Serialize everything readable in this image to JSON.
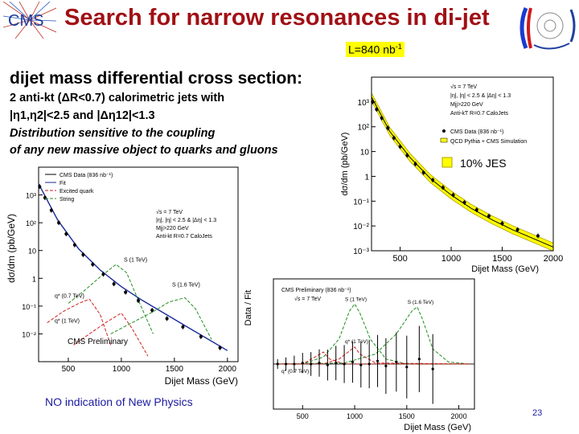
{
  "header": {
    "title": "Search for narrow resonances in di-jet",
    "logo_left_text": "CMS",
    "lumi_prefix": "L=840 nb",
    "lumi_exp": "-1"
  },
  "body": {
    "heading": "dijet mass differential cross section:",
    "line1": "2 anti-kt (ΔR<0.7) calorimetric jets with",
    "line2": "|η1,η2|<2.5 and |Δη12|<1.3",
    "line3": "Distribution sensitive to the coupling",
    "line4": "of any new massive object to quarks and gluons",
    "conclusion": "NO indication of New Physics",
    "page_number": "23"
  },
  "colors": {
    "title": "#a01015",
    "band": "#ffff00",
    "blue_text": "#1a1aa0"
  },
  "chart_data": [
    {
      "type": "line",
      "title": "",
      "xlabel": "Dijet Mass (GeV)",
      "ylabel": "dσ/dm (pb/GeV)",
      "xlim": [
        220,
        2000
      ],
      "ylim_log10": [
        -3,
        4
      ],
      "xticks": [
        "500",
        "1000",
        "1500",
        "2000"
      ],
      "yticks": [
        "10⁻³",
        "10⁻²",
        "10⁻¹",
        "1",
        "10",
        "10²",
        "10³"
      ],
      "annotations": [
        "√s = 7 TeV",
        "|η|, |η| < 2.5 & |Δη| < 1.3",
        "Mjj>220 GeV",
        "Anti-kT R=0.7 CaloJets"
      ],
      "legend": [
        "CMS Data (836 nb⁻¹)",
        "QCD Pythia + CMS Simulation"
      ],
      "band_label": "10% JES",
      "series": [
        {
          "name": "CMS Data",
          "x": [
            230,
            270,
            320,
            380,
            440,
            500,
            570,
            650,
            730,
            820,
            920,
            1020,
            1130,
            1250,
            1370,
            1500,
            1650,
            1850
          ],
          "log10y": [
            3.0,
            2.7,
            2.35,
            1.95,
            1.55,
            1.2,
            0.85,
            0.5,
            0.15,
            -0.15,
            -0.45,
            -0.75,
            -1.05,
            -1.35,
            -1.6,
            -1.9,
            -2.15,
            -2.4
          ]
        },
        {
          "name": "QCD Pythia",
          "x": [
            220,
            400,
            600,
            800,
            1000,
            1200,
            1400,
            1600,
            1800,
            2000
          ],
          "log10y": [
            3.2,
            1.8,
            0.75,
            -0.1,
            -0.75,
            -1.3,
            -1.75,
            -2.15,
            -2.5,
            -2.85
          ]
        }
      ]
    },
    {
      "type": "line",
      "title": "CMS Preliminary",
      "xlabel": "Dijet Mass (GeV)",
      "ylabel": "dσ/dm (pb/GeV)",
      "xlim": [
        220,
        2100
      ],
      "ylim_log10": [
        -3,
        4
      ],
      "xticks": [
        "500",
        "1000",
        "1500",
        "2000"
      ],
      "yticks": [
        "10⁻²",
        "10⁻¹",
        "1",
        "10",
        "10²",
        "10³"
      ],
      "legend": [
        "CMS Data (836 nb⁻¹)",
        "Fit",
        "Excited quark",
        "String"
      ],
      "annotations": [
        "√s = 7 TeV",
        "|η|, |η| < 2.5 & |Δη| < 1.3",
        "Mjj>220 GeV",
        "Anti-kt R=0.7 CaloJets"
      ],
      "signal_labels": [
        "q* (0.7 TeV)",
        "q* (1 TeV)",
        "S (1 TeV)",
        "S (1.6 TeV)"
      ],
      "series": [
        {
          "name": "CMS Data",
          "x": [
            230,
            280,
            340,
            410,
            480,
            560,
            640,
            730,
            830,
            930,
            1040,
            1160,
            1290,
            1430,
            1580,
            1750,
            1930
          ],
          "log10y": [
            3.3,
            2.9,
            2.45,
            2.0,
            1.6,
            1.2,
            0.85,
            0.5,
            0.15,
            -0.2,
            -0.5,
            -0.8,
            -1.15,
            -1.45,
            -1.75,
            -2.1,
            -2.5
          ]
        },
        {
          "name": "Fit",
          "x": [
            220,
            400,
            600,
            800,
            1000,
            1200,
            1400,
            1600,
            1800,
            2000
          ],
          "log10y": [
            3.4,
            2.1,
            1.05,
            0.3,
            -0.3,
            -0.8,
            -1.25,
            -1.7,
            -2.15,
            -2.6
          ]
        },
        {
          "name": "q* (0.7 TeV)",
          "x": [
            300,
            450,
            600,
            700,
            800,
            900
          ],
          "log10y": [
            -1.6,
            -1.2,
            -0.9,
            -0.75,
            -1.3,
            -2.4
          ]
        },
        {
          "name": "q* (1 TeV)",
          "x": [
            550,
            700,
            850,
            1000,
            1100,
            1250
          ],
          "log10y": [
            -2.4,
            -2.0,
            -1.6,
            -1.25,
            -1.8,
            -2.8
          ]
        },
        {
          "name": "S (1 TeV)",
          "x": [
            500,
            650,
            800,
            950,
            1050,
            1150,
            1300
          ],
          "log10y": [
            -0.9,
            -0.45,
            0.05,
            0.5,
            0.2,
            -0.7,
            -2.0
          ]
        },
        {
          "name": "S (1.6 TeV)",
          "x": [
            900,
            1100,
            1300,
            1450,
            1600,
            1700,
            1850
          ],
          "log10y": [
            -2.0,
            -1.6,
            -1.2,
            -0.85,
            -0.7,
            -1.1,
            -2.2
          ]
        }
      ]
    },
    {
      "type": "line",
      "title": "CMS Preliminary (836 nb⁻¹)",
      "subtitle": "√s = 7 TeV",
      "xlabel": "Dijet Mass (GeV)",
      "ylabel": "Data / Fit",
      "xlim": [
        220,
        2150
      ],
      "ylim": [
        0,
        1.3
      ],
      "xticks": [
        "500",
        "1000",
        "1500",
        "2000"
      ],
      "signal_labels": [
        "S (1 TeV)",
        "S (1.6 TeV)",
        "q* (1 TeV)",
        "q* (0.7 TeV)"
      ],
      "series": [
        {
          "name": "Data / Fit",
          "x": [
            260,
            340,
            420,
            500,
            580,
            660,
            740,
            820,
            900,
            980,
            1060,
            1140,
            1220,
            1300,
            1400,
            1500,
            1620,
            1750
          ],
          "y": [
            0.45,
            0.45,
            0.45,
            0.46,
            0.45,
            0.46,
            0.44,
            0.46,
            0.45,
            0.47,
            0.44,
            0.45,
            0.48,
            0.43,
            0.47,
            0.42,
            0.5,
            0.4
          ]
        },
        {
          "name": "S (1 TeV)",
          "x": [
            250,
            500,
            700,
            850,
            950,
            1000,
            1050,
            1150,
            1300,
            1500,
            2000
          ],
          "y": [
            0.45,
            0.45,
            0.52,
            0.7,
            0.98,
            1.05,
            0.96,
            0.7,
            0.5,
            0.45,
            0.45
          ]
        },
        {
          "name": "S (1.6 TeV)",
          "x": [
            250,
            900,
            1200,
            1400,
            1550,
            1600,
            1650,
            1750,
            1900,
            2100
          ],
          "y": [
            0.45,
            0.46,
            0.55,
            0.75,
            0.98,
            1.02,
            0.9,
            0.6,
            0.47,
            0.45
          ]
        },
        {
          "name": "q* (1 TeV)",
          "x": [
            250,
            700,
            850,
            950,
            1000,
            1050,
            1200,
            2100
          ],
          "y": [
            0.45,
            0.45,
            0.5,
            0.58,
            0.62,
            0.55,
            0.46,
            0.45
          ]
        },
        {
          "name": "q* (0.7 TeV)",
          "x": [
            250,
            500,
            620,
            700,
            760,
            900,
            2100
          ],
          "y": [
            0.45,
            0.45,
            0.52,
            0.57,
            0.5,
            0.45,
            0.45
          ]
        }
      ]
    }
  ]
}
